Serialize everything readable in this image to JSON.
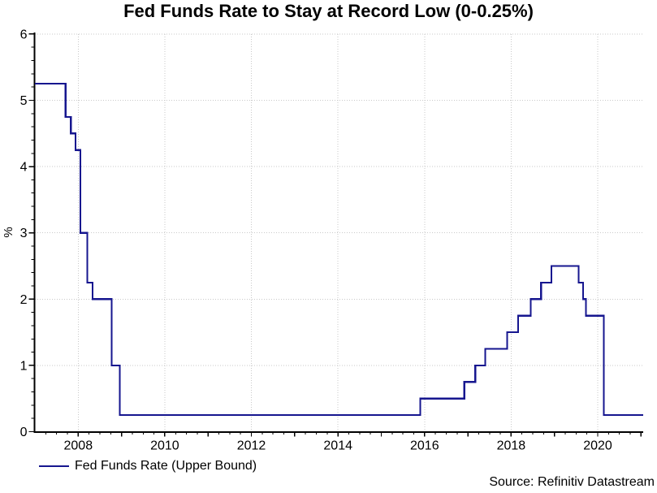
{
  "chart": {
    "title": "Fed Funds Rate to Stay at Record Low (0-0.25%)",
    "ylabel": "%",
    "source": "Source: Refinitiv Datastream"
  },
  "colors": {
    "line": "#16168f",
    "grid": "#c9c9c9",
    "axis": "#000000",
    "text": "#000000",
    "background": "#ffffff"
  },
  "chart_data": {
    "type": "line",
    "line_style": "step-after",
    "title": "Fed Funds Rate to Stay at Record Low (0-0.25%)",
    "xlabel": "",
    "ylabel": "%",
    "x_range": [
      2007.0,
      2021.05
    ],
    "ylim": [
      0,
      6
    ],
    "grid": true,
    "x_ticks_labeled": [
      2008,
      2010,
      2012,
      2014,
      2016,
      2018,
      2020
    ],
    "x_minor_tick_interval": 0.25,
    "y_ticks": [
      0,
      1,
      2,
      3,
      4,
      5,
      6
    ],
    "y_minor_tick_interval": 0.2,
    "legend_position": "bottom-left",
    "series": [
      {
        "name": "Fed Funds Rate (Upper Bound)",
        "color": "#16168f",
        "points": [
          [
            2007.0,
            5.25
          ],
          [
            2007.71,
            4.75
          ],
          [
            2007.83,
            4.5
          ],
          [
            2007.94,
            4.25
          ],
          [
            2008.05,
            3.0
          ],
          [
            2008.21,
            2.25
          ],
          [
            2008.33,
            2.0
          ],
          [
            2008.77,
            1.0
          ],
          [
            2008.96,
            0.25
          ],
          [
            2015.9,
            0.5
          ],
          [
            2016.92,
            0.75
          ],
          [
            2017.17,
            1.0
          ],
          [
            2017.4,
            1.25
          ],
          [
            2017.91,
            1.5
          ],
          [
            2018.16,
            1.75
          ],
          [
            2018.45,
            2.0
          ],
          [
            2018.69,
            2.25
          ],
          [
            2018.93,
            2.5
          ],
          [
            2019.56,
            2.25
          ],
          [
            2019.66,
            2.0
          ],
          [
            2019.73,
            1.75
          ],
          [
            2020.14,
            0.25
          ]
        ],
        "x_end": 2021.05
      }
    ]
  }
}
